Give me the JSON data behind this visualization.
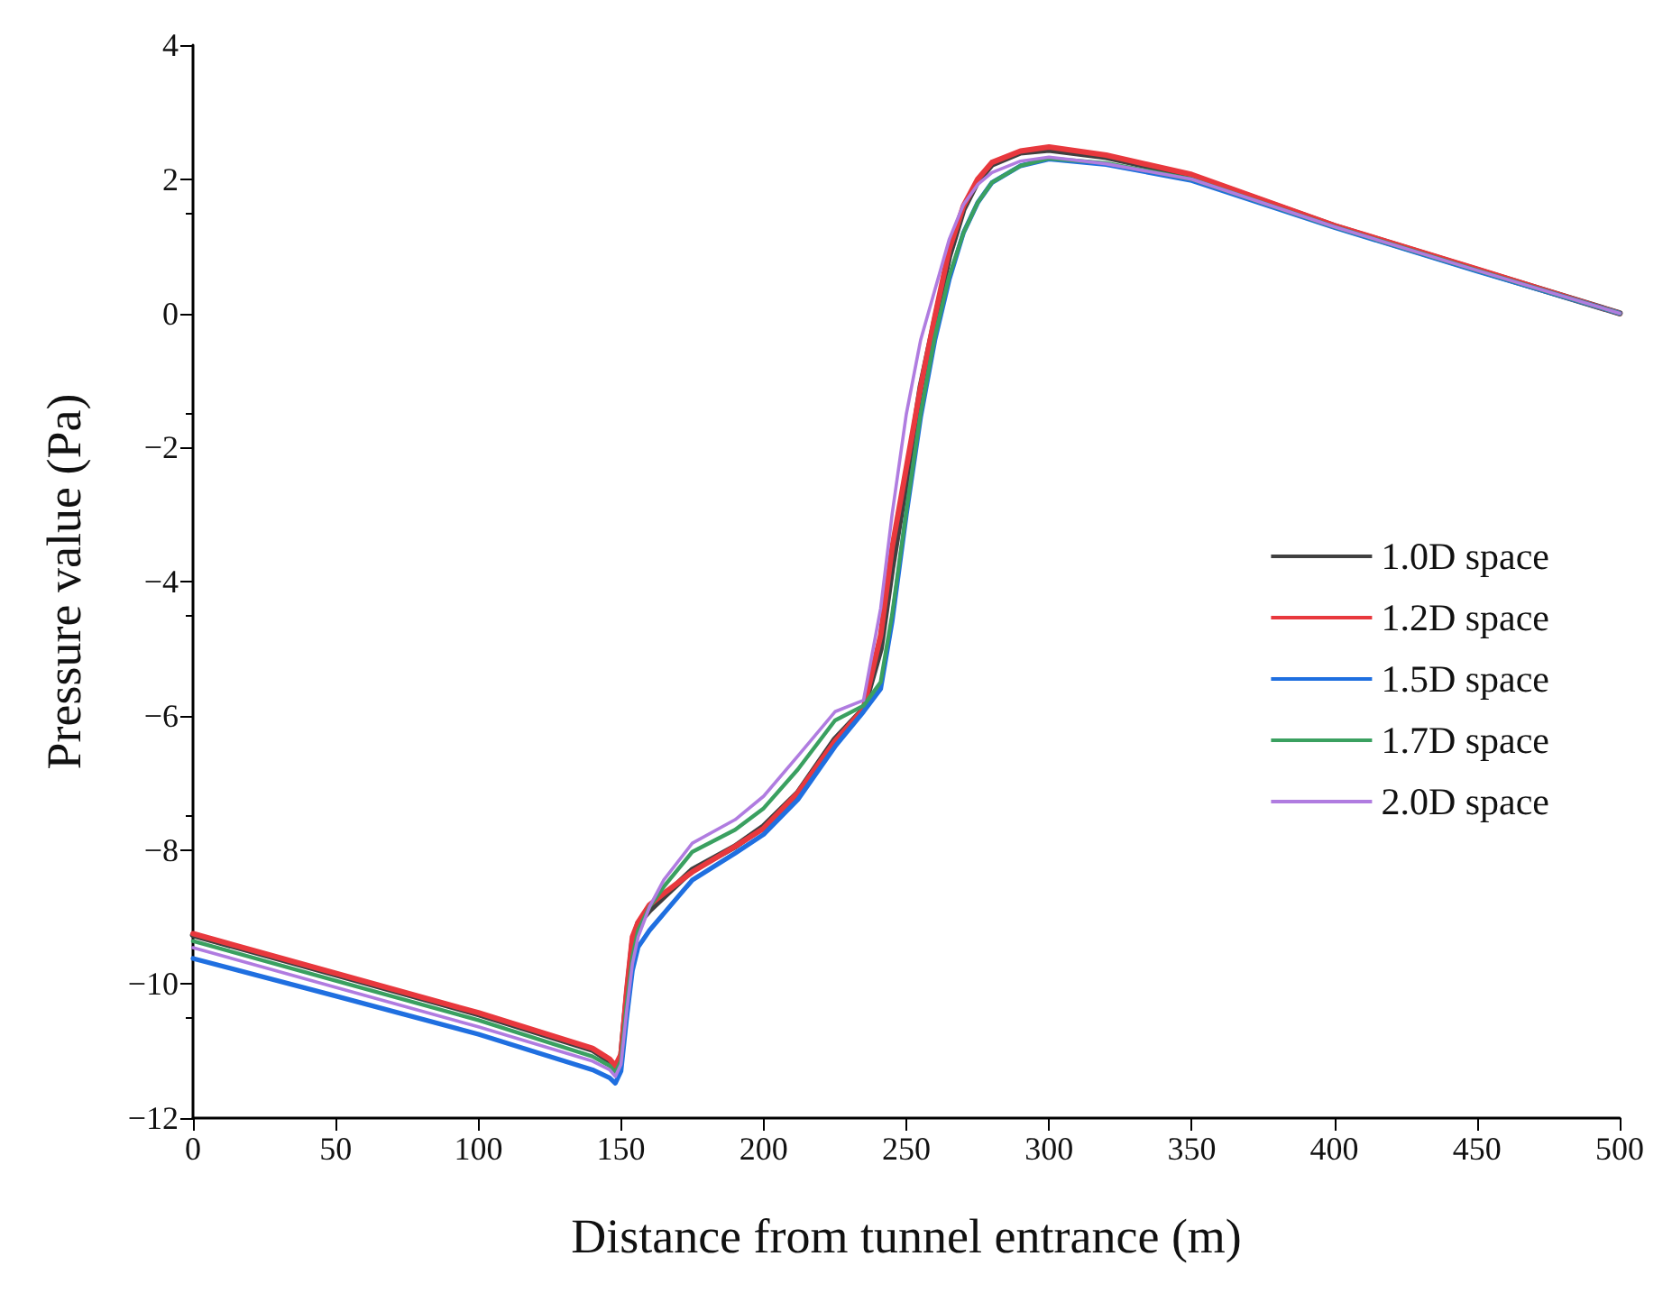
{
  "chart_data": {
    "type": "line",
    "xlabel": "Distance from tunnel entrance (m)",
    "ylabel": "Pressure value (Pa)",
    "x": [
      0,
      50,
      100,
      140,
      146,
      148,
      150,
      152,
      154,
      156,
      160,
      165,
      175,
      190,
      200,
      212,
      225,
      235,
      241,
      245,
      250,
      255,
      260,
      265,
      270,
      275,
      280,
      290,
      300,
      320,
      350,
      400,
      450,
      500
    ],
    "series": [
      {
        "name": "1.0D space",
        "color": "#404040",
        "values": [
          -9.27,
          -9.86,
          -10.45,
          -10.98,
          -11.15,
          -11.26,
          -11.1,
          -10.2,
          -9.4,
          -9.1,
          -8.9,
          -8.7,
          -8.3,
          -7.95,
          -7.65,
          -7.15,
          -6.35,
          -5.9,
          -5.0,
          -3.8,
          -2.5,
          -1.1,
          -0.1,
          0.85,
          1.55,
          1.97,
          2.22,
          2.4,
          2.44,
          2.33,
          2.05,
          1.3,
          0.65,
          0
        ]
      },
      {
        "name": "1.2D space",
        "color": "#e8383d",
        "values": [
          -9.25,
          -9.84,
          -10.43,
          -10.96,
          -11.12,
          -11.22,
          -11.05,
          -10.1,
          -9.3,
          -9.08,
          -8.82,
          -8.65,
          -8.33,
          -7.95,
          -7.68,
          -7.15,
          -6.38,
          -5.9,
          -4.8,
          -3.5,
          -2.3,
          -1.1,
          -0.05,
          0.95,
          1.6,
          2.0,
          2.25,
          2.42,
          2.48,
          2.36,
          2.07,
          1.31,
          0.66,
          0
        ]
      },
      {
        "name": "1.5D space",
        "color": "#1f6fe0",
        "values": [
          -9.62,
          -10.18,
          -10.75,
          -11.28,
          -11.4,
          -11.48,
          -11.3,
          -10.5,
          -9.8,
          -9.45,
          -9.2,
          -8.95,
          -8.45,
          -8.05,
          -7.77,
          -7.25,
          -6.46,
          -5.94,
          -5.6,
          -4.6,
          -3.0,
          -1.55,
          -0.4,
          0.5,
          1.2,
          1.65,
          1.95,
          2.2,
          2.3,
          2.22,
          1.98,
          1.28,
          0.63,
          0
        ]
      },
      {
        "name": "1.7D space",
        "color": "#3aa060",
        "values": [
          -9.36,
          -9.95,
          -10.54,
          -11.08,
          -11.22,
          -11.32,
          -11.15,
          -10.3,
          -9.6,
          -9.2,
          -8.85,
          -8.55,
          -8.03,
          -7.7,
          -7.38,
          -6.8,
          -6.07,
          -5.85,
          -5.5,
          -4.5,
          -2.95,
          -1.5,
          -0.35,
          0.55,
          1.2,
          1.65,
          1.95,
          2.2,
          2.31,
          2.24,
          2.0,
          1.29,
          0.64,
          0
        ]
      },
      {
        "name": "2.0D space",
        "color": "#b07ce0",
        "values": [
          -9.46,
          -10.05,
          -10.64,
          -11.15,
          -11.28,
          -11.38,
          -11.2,
          -10.4,
          -9.7,
          -9.3,
          -8.85,
          -8.45,
          -7.9,
          -7.55,
          -7.2,
          -6.6,
          -5.94,
          -5.77,
          -4.4,
          -3.0,
          -1.5,
          -0.4,
          0.35,
          1.1,
          1.62,
          1.92,
          2.1,
          2.27,
          2.33,
          2.23,
          2.0,
          1.29,
          0.64,
          0
        ]
      }
    ],
    "xlim": [
      0,
      500
    ],
    "xticks": [
      0,
      50,
      100,
      150,
      200,
      250,
      300,
      350,
      400,
      450,
      500
    ],
    "ylim": [
      -12,
      4
    ],
    "yticks": [
      {
        "value": -12,
        "label": "−12"
      },
      {
        "value": -10,
        "label": "−10"
      },
      {
        "value": -8,
        "label": "−8"
      },
      {
        "value": -6,
        "label": "−6"
      },
      {
        "value": -4,
        "label": "−4"
      },
      {
        "value": -2,
        "label": "−2"
      },
      0,
      2,
      4
    ],
    "grid": false,
    "legend": "right"
  }
}
